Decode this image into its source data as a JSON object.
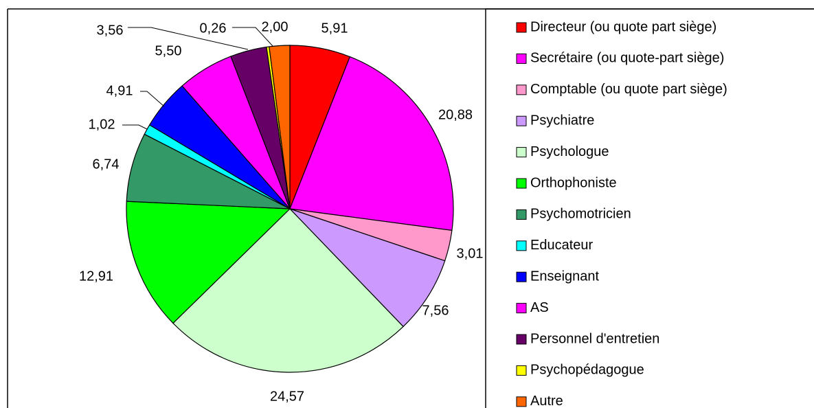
{
  "chart_data": {
    "type": "pie",
    "categories": [
      "Directeur (ou quote part siège)",
      "Secrétaire (ou quote-part siège)",
      "Comptable (ou quote part siège)",
      "Psychiatre",
      "Psychologue",
      "Orthophoniste",
      "Psychomotricien",
      "Educateur",
      "Enseignant",
      "AS",
      "Personnel d'entretien",
      "Psychopédagogue",
      "Autre"
    ],
    "values": [
      5.91,
      20.88,
      3.01,
      7.56,
      24.57,
      12.91,
      6.74,
      1.02,
      4.91,
      5.5,
      3.56,
      0.26,
      2.0
    ],
    "value_labels": [
      "5,91",
      "20,88",
      "3,01",
      "7,56",
      "24,57",
      "12,91",
      "6,74",
      "1,02",
      "4,91",
      "5,50",
      "3,56",
      "0,26",
      "2,00"
    ],
    "colors": [
      "#ff0000",
      "#ff00ff",
      "#ff99cc",
      "#cc99ff",
      "#ccffcc",
      "#00ff00",
      "#339966",
      "#00ffff",
      "#0000ff",
      "#ff00ff",
      "#660066",
      "#ffff00",
      "#ff6600"
    ],
    "legend": "right"
  }
}
